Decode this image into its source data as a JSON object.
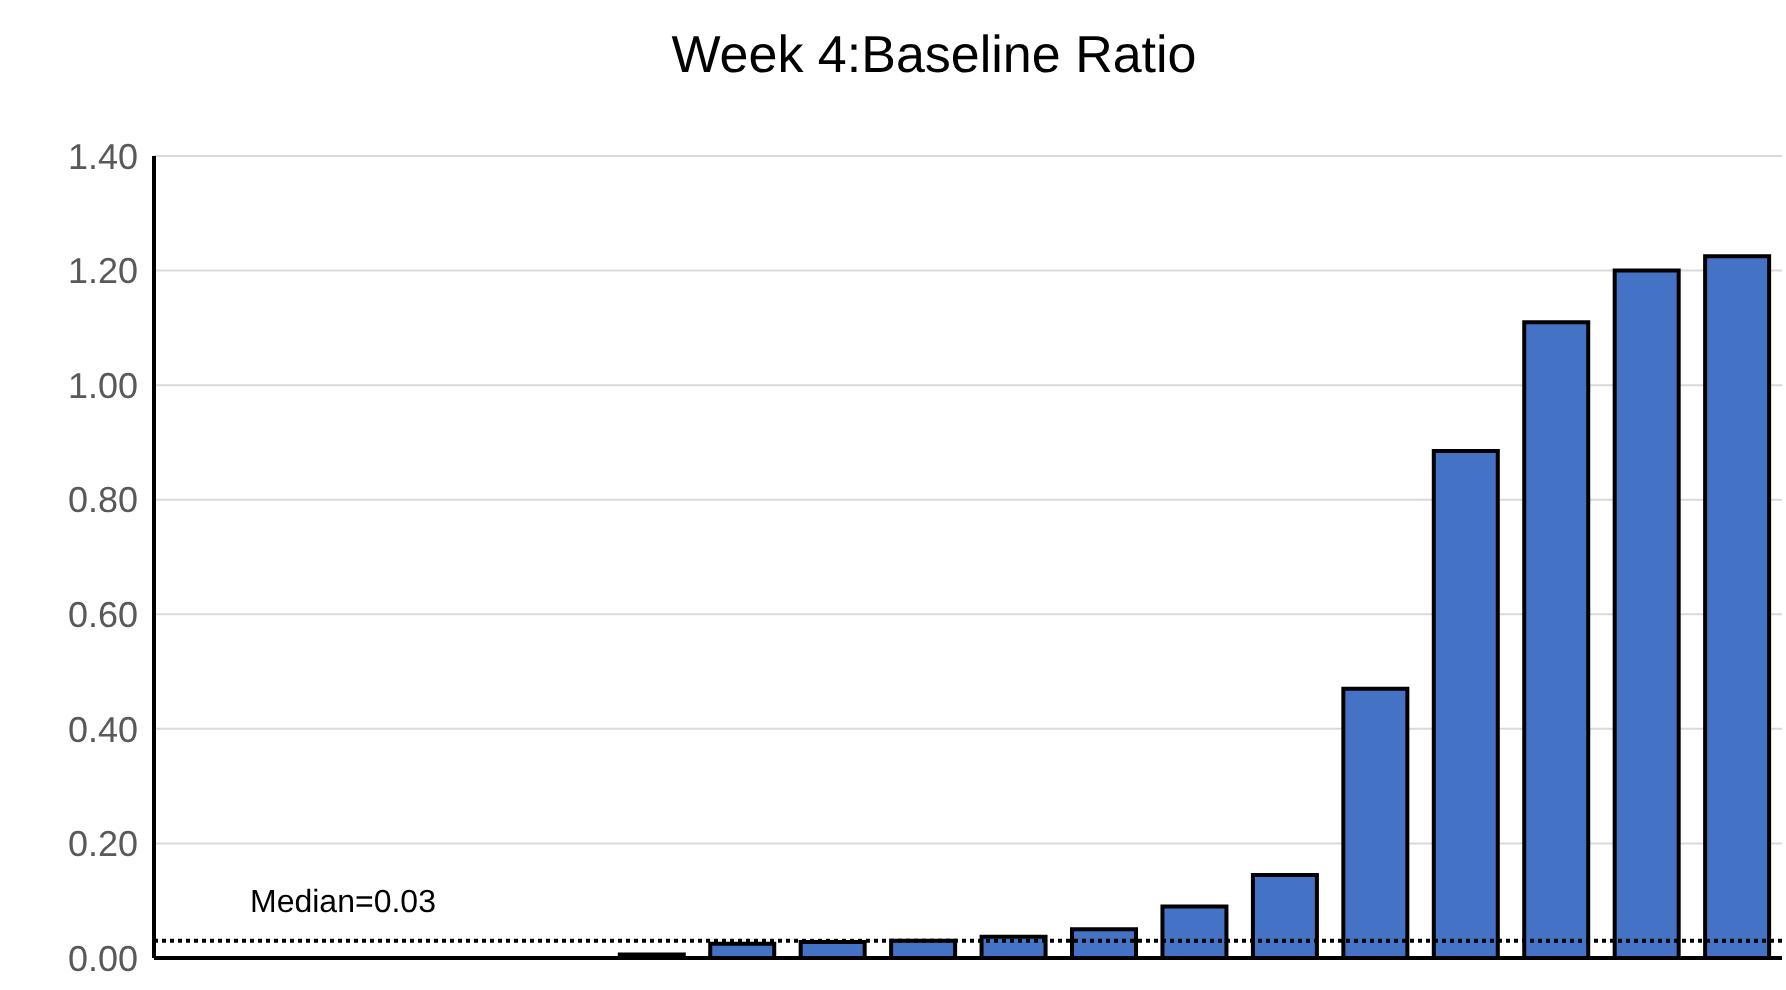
{
  "chart_data": {
    "type": "bar",
    "title": "Week 4:Baseline Ratio",
    "categories": [
      null,
      null,
      null,
      null,
      null,
      null,
      null,
      null,
      null,
      null,
      null,
      null,
      null,
      null,
      null,
      null,
      null,
      null
    ],
    "values": [
      0,
      0,
      0,
      0,
      0,
      0.006,
      0.025,
      0.028,
      0.03,
      0.037,
      0.05,
      0.09,
      0.145,
      0.47,
      0.885,
      1.11,
      1.2,
      1.225
    ],
    "color": "#4472c4",
    "ylim": [
      0,
      1.4
    ],
    "yticks": [
      {
        "value": 0,
        "label": "0.00"
      },
      {
        "value": 0.2,
        "label": "0.20"
      },
      {
        "value": 0.4,
        "label": "0.40"
      },
      {
        "value": 0.6,
        "label": "0.60"
      },
      {
        "value": 0.8,
        "label": "0.80"
      },
      {
        "value": 1,
        "label": "1.00"
      },
      {
        "value": 1.2,
        "label": "1.20"
      },
      {
        "value": 1.4,
        "label": "1.40"
      }
    ],
    "grid": "y",
    "tick_labels": "y",
    "ref_lines": [
      {
        "axis": "y",
        "value": 0.03,
        "label": "Median=0.03",
        "color": "#000000",
        "line_style": "dotted"
      }
    ]
  }
}
